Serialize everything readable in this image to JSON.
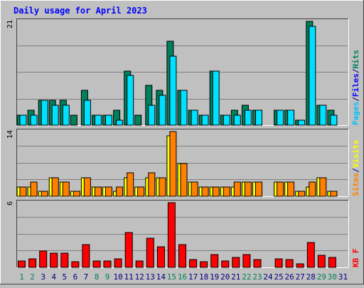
{
  "chart_data": {
    "type": "bar",
    "title": "Daily usage for April 2023",
    "days": [
      "1",
      "2",
      "3",
      "4",
      "5",
      "6",
      "7",
      "8",
      "9",
      "10",
      "11",
      "12",
      "13",
      "14",
      "15",
      "16",
      "17",
      "18",
      "19",
      "20",
      "21",
      "22",
      "23",
      "24",
      "25",
      "26",
      "27",
      "28",
      "29",
      "30",
      "31"
    ],
    "weekend_days": [
      1,
      2,
      8,
      9,
      15,
      16,
      22,
      23,
      29,
      30
    ],
    "colors": {
      "hits": "#00805c",
      "files": "#00e0ff",
      "pages": "#00c0ff",
      "visits": "#ffff00",
      "sites": "#ff8000",
      "kbytes": "#ff0000",
      "title": "#0000ff",
      "weekend": "#00805c",
      "weekday": "#000080"
    },
    "panels": [
      {
        "id": "top",
        "max_label": "21",
        "ymax": 21,
        "legend": [
          {
            "text": "Pages",
            "color": "#00c0ff"
          },
          {
            "text": "/",
            "color": "#000080"
          },
          {
            "text": "Files",
            "color": "#0000ff"
          },
          {
            "text": "/",
            "color": "#000080"
          },
          {
            "text": "Hits",
            "color": "#00805c"
          }
        ],
        "series": [
          {
            "name": "Hits",
            "color": "#00805c",
            "values": [
              2,
              3,
              5,
              5,
              5,
              2,
              7,
              2,
              2,
              3,
              11,
              2,
              8,
              7,
              17,
              7,
              3,
              2,
              11,
              2,
              3,
              4,
              3,
              0,
              3,
              3,
              1,
              21,
              4,
              3,
              0
            ]
          },
          {
            "name": "Files",
            "color": "#00e0ff",
            "values": [
              2,
              2,
              5,
              4,
              4,
              0,
              5,
              2,
              2,
              1,
              10,
              0,
              4,
              6,
              14,
              7,
              3,
              2,
              11,
              2,
              2,
              3,
              3,
              0,
              3,
              3,
              1,
              20,
              4,
              2,
              0
            ]
          }
        ]
      },
      {
        "id": "middle",
        "max_label": "14",
        "ymax": 14,
        "legend": [
          {
            "text": "Sites",
            "color": "#ff8000"
          },
          {
            "text": "/",
            "color": "#000080"
          },
          {
            "text": "Visits",
            "color": "#ffff00"
          }
        ],
        "series": [
          {
            "name": "Visits",
            "color": "#ffff00",
            "values": [
              2,
              2,
              1,
              4,
              3,
              1,
              4,
              2,
              2,
              1,
              4,
              2,
              4,
              4,
              13,
              7,
              3,
              2,
              2,
              2,
              2,
              3,
              3,
              0,
              3,
              3,
              1,
              2,
              4,
              1,
              0
            ]
          },
          {
            "name": "Sites",
            "color": "#ff8000",
            "values": [
              2,
              3,
              1,
              4,
              3,
              1,
              4,
              2,
              2,
              2,
              5,
              2,
              5,
              4,
              14,
              7,
              3,
              2,
              2,
              2,
              3,
              3,
              3,
              0,
              3,
              3,
              1,
              3,
              4,
              1,
              0
            ]
          }
        ]
      },
      {
        "id": "bottom",
        "max_label": "6",
        "ymax": 6,
        "legend": [
          {
            "text": "KB F",
            "color": "#ff0000"
          }
        ],
        "series": [
          {
            "name": "KB F",
            "color": "#ff0000",
            "values": [
              0.6,
              0.8,
              1.5,
              1.3,
              1.3,
              0.5,
              2.1,
              0.6,
              0.6,
              0.8,
              3.2,
              0.6,
              2.7,
              1.9,
              6,
              2.1,
              0.7,
              0.5,
              1.2,
              0.6,
              0.9,
              1.2,
              0.7,
              0,
              0.8,
              0.7,
              0.3,
              2.3,
              1.1,
              0.9,
              0
            ]
          }
        ]
      }
    ]
  }
}
